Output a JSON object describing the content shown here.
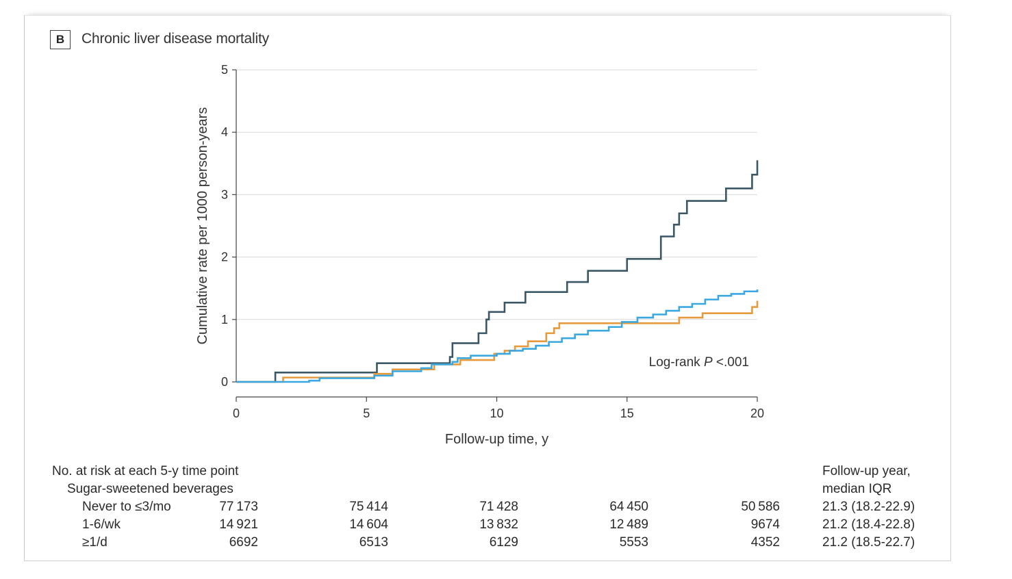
{
  "panel": {
    "letter": "B",
    "title": "Chronic liver disease mortality"
  },
  "chart_data": {
    "type": "line",
    "title": "Chronic liver disease mortality",
    "xlabel": "Follow-up time, y",
    "ylabel": "Cumulative rate per 1000 person-years",
    "xlim": [
      0,
      20
    ],
    "ylim": [
      0,
      5
    ],
    "x_ticks": [
      "0",
      "5",
      "10",
      "15",
      "20"
    ],
    "y_ticks": [
      "0",
      "1",
      "2",
      "3",
      "4",
      "5"
    ],
    "grid": "horizontal",
    "annotation_prefix": "Log-rank ",
    "annotation_italic": "P",
    "annotation_suffix": " <.001",
    "series": [
      {
        "color": "#3a5766",
        "step": true,
        "points": [
          [
            0,
            0
          ],
          [
            1.5,
            0.15
          ],
          [
            5.4,
            0.3
          ],
          [
            8.2,
            0.4
          ],
          [
            8.3,
            0.62
          ],
          [
            9.3,
            0.78
          ],
          [
            9.6,
            1.0
          ],
          [
            9.7,
            1.12
          ],
          [
            10.3,
            1.27
          ],
          [
            11.1,
            1.44
          ],
          [
            12.7,
            1.6
          ],
          [
            13.5,
            1.78
          ],
          [
            15.0,
            1.97
          ],
          [
            16.3,
            2.33
          ],
          [
            16.8,
            2.52
          ],
          [
            17.0,
            2.7
          ],
          [
            17.3,
            2.9
          ],
          [
            18.8,
            3.1
          ],
          [
            19.8,
            3.32
          ],
          [
            20.0,
            3.55
          ]
        ]
      },
      {
        "color": "#e69a3c",
        "step": true,
        "points": [
          [
            0,
            0
          ],
          [
            1.8,
            0.07
          ],
          [
            5.3,
            0.13
          ],
          [
            6.0,
            0.2
          ],
          [
            7.6,
            0.28
          ],
          [
            8.6,
            0.35
          ],
          [
            9.9,
            0.45
          ],
          [
            10.3,
            0.5
          ],
          [
            10.7,
            0.57
          ],
          [
            11.2,
            0.65
          ],
          [
            11.9,
            0.78
          ],
          [
            12.2,
            0.86
          ],
          [
            12.4,
            0.94
          ],
          [
            15.0,
            0.94
          ],
          [
            17.0,
            1.03
          ],
          [
            17.9,
            1.1
          ],
          [
            19.8,
            1.2
          ],
          [
            20.0,
            1.3
          ]
        ]
      },
      {
        "color": "#3aa7e0",
        "step": true,
        "points": [
          [
            0,
            0
          ],
          [
            1.9,
            0.0
          ],
          [
            2.8,
            0.02
          ],
          [
            3.2,
            0.06
          ],
          [
            5.3,
            0.1
          ],
          [
            6.0,
            0.17
          ],
          [
            7.1,
            0.22
          ],
          [
            7.5,
            0.28
          ],
          [
            8.3,
            0.32
          ],
          [
            8.5,
            0.38
          ],
          [
            9.0,
            0.42
          ],
          [
            10.0,
            0.45
          ],
          [
            10.5,
            0.5
          ],
          [
            11.0,
            0.53
          ],
          [
            11.5,
            0.58
          ],
          [
            12.0,
            0.64
          ],
          [
            12.5,
            0.7
          ],
          [
            13.0,
            0.76
          ],
          [
            13.5,
            0.82
          ],
          [
            14.3,
            0.88
          ],
          [
            14.8,
            0.96
          ],
          [
            15.4,
            1.03
          ],
          [
            16.0,
            1.08
          ],
          [
            16.5,
            1.14
          ],
          [
            17.0,
            1.2
          ],
          [
            17.5,
            1.25
          ],
          [
            18.0,
            1.32
          ],
          [
            18.5,
            1.38
          ],
          [
            19.0,
            1.41
          ],
          [
            19.5,
            1.45
          ],
          [
            20.0,
            1.48
          ]
        ]
      }
    ]
  },
  "risk_table": {
    "heading": "No. at risk at each 5-y time point",
    "subheading": "Sugar-sweetened beverages",
    "followup_heading_1": "Follow-up year,",
    "followup_heading_2": "median IQR",
    "rows": [
      {
        "label": "Never to ≤3/mo",
        "values": [
          "77 173",
          "75 414",
          "71 428",
          "64 450",
          "50 586"
        ],
        "followup": "21.3 (18.2-22.9)"
      },
      {
        "label": "1-6/wk",
        "values": [
          "14 921",
          "14 604",
          "13 832",
          "12 489",
          "9674"
        ],
        "followup": "21.2 (18.4-22.8)"
      },
      {
        "label": "≥1/d",
        "values": [
          "6692",
          "6513",
          "6129",
          "5553",
          "4352"
        ],
        "followup": "21.2 (18.5-22.7)"
      }
    ]
  }
}
